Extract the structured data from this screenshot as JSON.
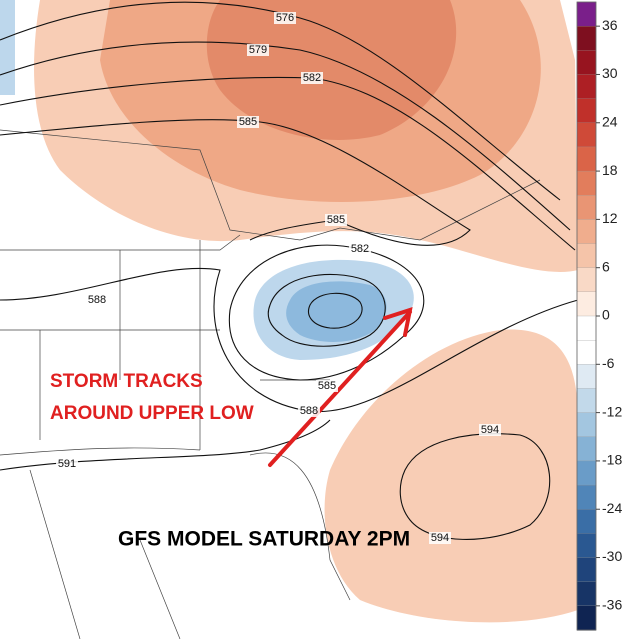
{
  "map": {
    "contour_labels": [
      "576",
      "579",
      "582",
      "585",
      "585",
      "582",
      "588",
      "591",
      "594",
      "594",
      "585",
      "588"
    ],
    "annotations": [
      "STORM TRACKS",
      "AROUND UPPER LOW"
    ],
    "caption": "GFS MODEL SATURDAY 2PM"
  },
  "colorbar": {
    "labels": [
      "36",
      "30",
      "24",
      "18",
      "12",
      "6",
      "0",
      "-6",
      "-12",
      "-18",
      "-24",
      "-30",
      "-36"
    ],
    "colors": [
      "#7a1f8a",
      "#7e0f1f",
      "#97141f",
      "#ad1f24",
      "#c0302a",
      "#cf4a38",
      "#da6448",
      "#e27d5c",
      "#e99574",
      "#f0ad8d",
      "#f5c4a9",
      "#f9d9c6",
      "#fdece1",
      "#ffffff",
      "#ffffff",
      "#dfeaf3",
      "#c2d9ea",
      "#a3c6e0",
      "#86b2d5",
      "#6a9cc8",
      "#5085b8",
      "#3a6ea6",
      "#2a5891",
      "#1f447b",
      "#173466",
      "#0f2452"
    ]
  }
}
